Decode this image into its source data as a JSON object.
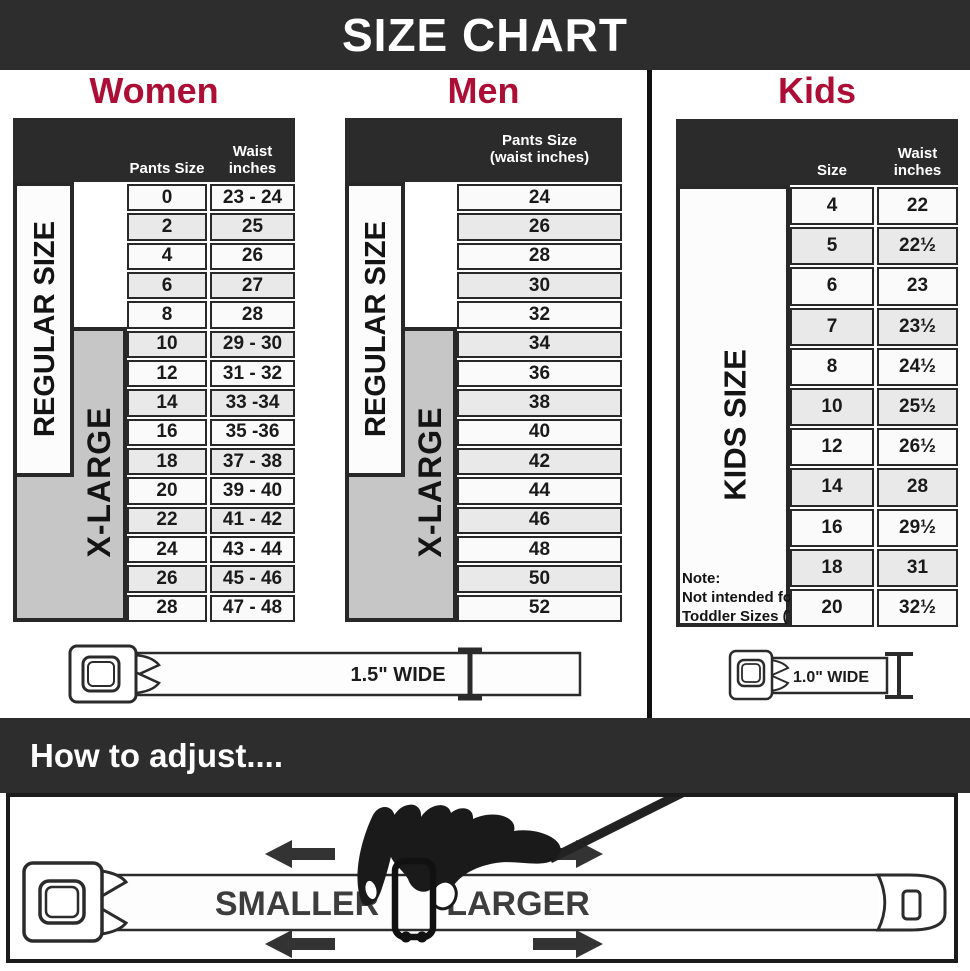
{
  "banner": {
    "title": "SIZE CHART"
  },
  "colors": {
    "accent": "#ad0e35",
    "dark": "#2d2d2d",
    "xlarge_gray": "#c6c6c6",
    "line": "#282828"
  },
  "women": {
    "title": "Women",
    "headers": {
      "pants": "Pants Size",
      "waist": "Waist inches"
    },
    "regular_label": "REGULAR SIZE",
    "xlarge_label": "X-LARGE",
    "rows": [
      [
        "0",
        "23 - 24"
      ],
      [
        "2",
        "25"
      ],
      [
        "4",
        "26"
      ],
      [
        "6",
        "27"
      ],
      [
        "8",
        "28"
      ],
      [
        "10",
        "29 - 30"
      ],
      [
        "12",
        "31 - 32"
      ],
      [
        "14",
        "33 -34"
      ],
      [
        "16",
        "35 -36"
      ],
      [
        "18",
        "37 - 38"
      ],
      [
        "20",
        "39 - 40"
      ],
      [
        "22",
        "41 - 42"
      ],
      [
        "24",
        "43 - 44"
      ],
      [
        "26",
        "45 - 46"
      ],
      [
        "28",
        "47 - 48"
      ]
    ]
  },
  "men": {
    "title": "Men",
    "headers": {
      "line1": "Pants Size",
      "line2": "(waist inches)"
    },
    "regular_label": "REGULAR SIZE",
    "xlarge_label": "X-LARGE",
    "rows": [
      "24",
      "26",
      "28",
      "30",
      "32",
      "34",
      "36",
      "38",
      "40",
      "42",
      "44",
      "46",
      "48",
      "50",
      "52"
    ]
  },
  "kids": {
    "title": "Kids",
    "headers": {
      "size": "Size",
      "waist": "Waist inches"
    },
    "side_label": "KIDS SIZE",
    "note": {
      "line1": "Note:",
      "line2": "Not intended for",
      "line3": "Toddler Sizes (T)"
    },
    "rows": [
      [
        "4",
        "22"
      ],
      [
        "5",
        "22½"
      ],
      [
        "6",
        "23"
      ],
      [
        "7",
        "23½"
      ],
      [
        "8",
        "24½"
      ],
      [
        "10",
        "25½"
      ],
      [
        "12",
        "26½"
      ],
      [
        "14",
        "28"
      ],
      [
        "16",
        "29½"
      ],
      [
        "18",
        "31"
      ],
      [
        "20",
        "32½"
      ]
    ]
  },
  "belts": {
    "adult_width_label": "1.5\" WIDE",
    "kids_width_label": "1.0\" WIDE"
  },
  "adjust": {
    "heading": "How to adjust....",
    "smaller_label": "SMALLER",
    "larger_label": "LARGER"
  }
}
